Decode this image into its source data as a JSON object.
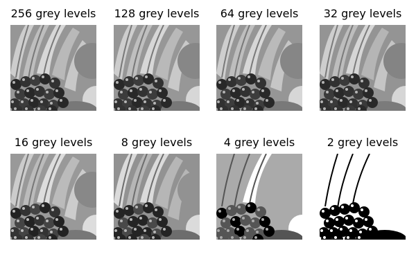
{
  "figure": {
    "panels": [
      {
        "title": "256 grey levels",
        "levels": 256,
        "image": "fruit-photo"
      },
      {
        "title": "128 grey levels",
        "levels": 128,
        "image": "fruit-photo"
      },
      {
        "title": "64 grey levels",
        "levels": 64,
        "image": "fruit-photo"
      },
      {
        "title": "32 grey levels",
        "levels": 32,
        "image": "fruit-photo"
      },
      {
        "title": "16 grey levels",
        "levels": 16,
        "image": "fruit-photo"
      },
      {
        "title": "8 grey levels",
        "levels": 8,
        "image": "fruit-photo"
      },
      {
        "title": "4 grey levels",
        "levels": 4,
        "image": "fruit-photo"
      },
      {
        "title": "2 grey levels",
        "levels": 2,
        "image": "fruit-photo"
      }
    ]
  }
}
